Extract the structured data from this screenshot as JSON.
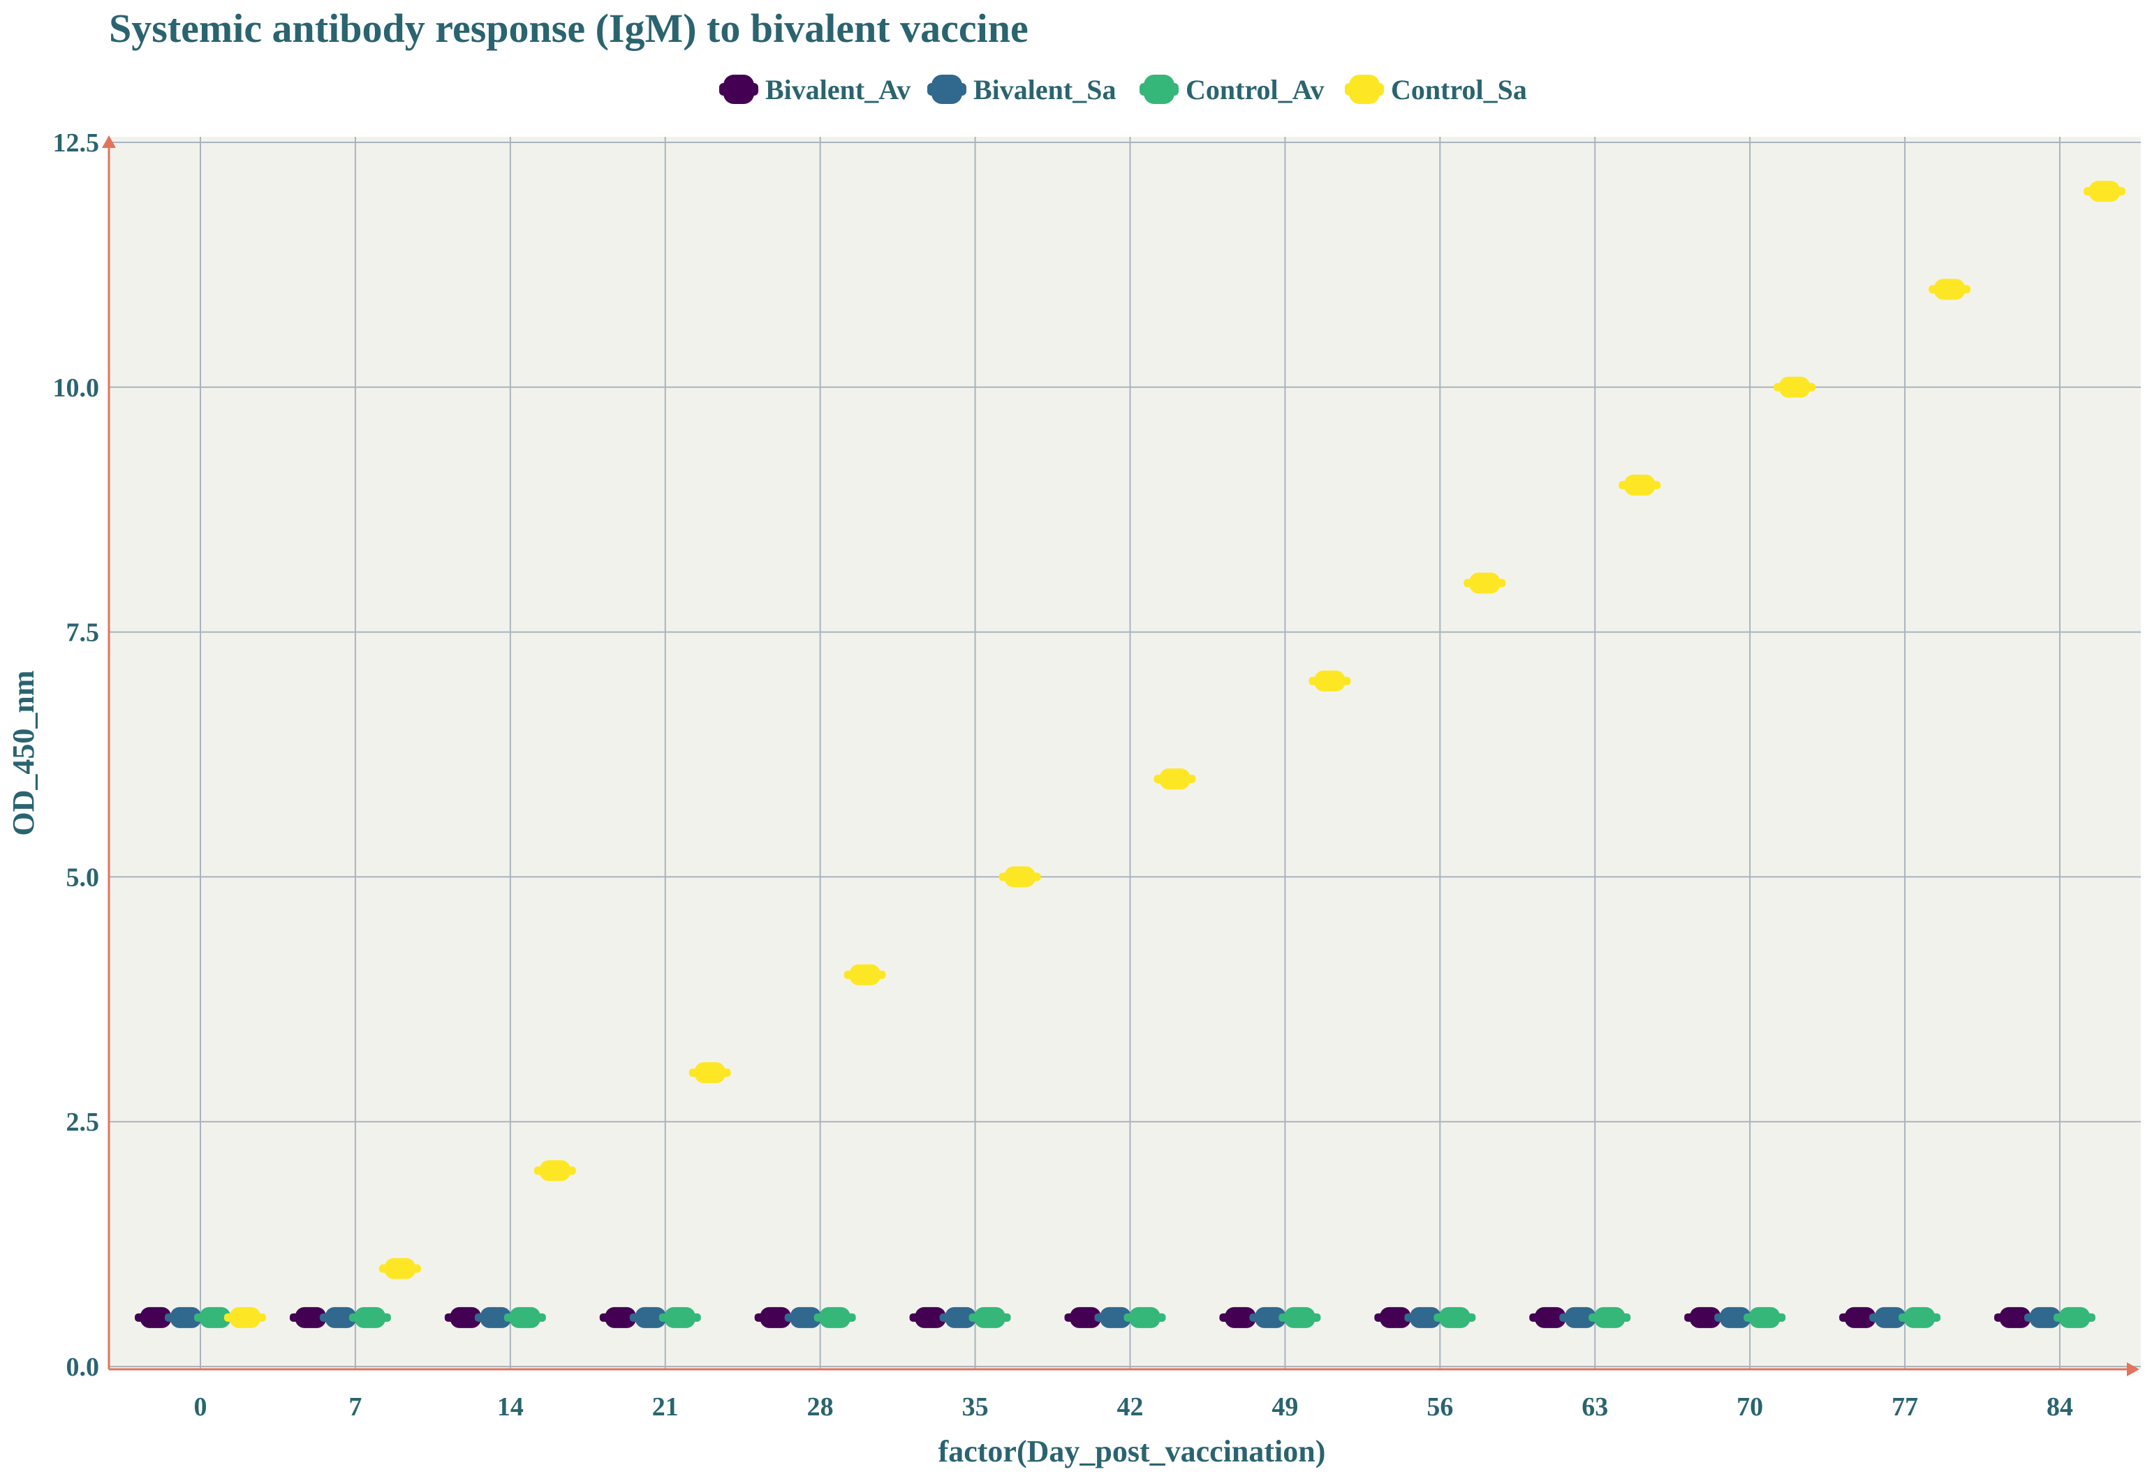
{
  "colors": {
    "text": "#2a6470",
    "panel": "#f2f2ed",
    "grid": "#a8b4be",
    "axis": "#e3735a",
    "Bivalent_Av": "#440154",
    "Bivalent_Sa": "#31688e",
    "Control_Av": "#35b779",
    "Control_Sa": "#fde725"
  },
  "chart_data": {
    "type": "scatter",
    "title": "Systemic antibody response (IgM) to bivalent vaccine",
    "xlabel": "factor(Day_post_vaccination)",
    "ylabel": "OD_450_nm",
    "categories": [
      "0",
      "7",
      "14",
      "21",
      "28",
      "35",
      "42",
      "49",
      "56",
      "63",
      "70",
      "77",
      "84"
    ],
    "yticks": [
      "0.0",
      "2.5",
      "5.0",
      "7.5",
      "10.0",
      "12.5"
    ],
    "ylim": [
      0,
      12.5
    ],
    "grid": true,
    "legend_position": "top",
    "series": [
      {
        "name": "Bivalent_Av",
        "values": [
          0.5,
          0.5,
          0.5,
          0.5,
          0.5,
          0.5,
          0.5,
          0.5,
          0.5,
          0.5,
          0.5,
          0.5,
          0.5
        ]
      },
      {
        "name": "Bivalent_Sa",
        "values": [
          0.5,
          0.5,
          0.5,
          0.5,
          0.5,
          0.5,
          0.5,
          0.5,
          0.5,
          0.5,
          0.5,
          0.5,
          0.5
        ]
      },
      {
        "name": "Control_Av",
        "values": [
          0.5,
          0.5,
          0.5,
          0.5,
          0.5,
          0.5,
          0.5,
          0.5,
          0.5,
          0.5,
          0.5,
          0.5,
          0.5
        ]
      },
      {
        "name": "Control_Sa",
        "values": [
          0.5,
          1.0,
          2.0,
          3.0,
          4.0,
          5.0,
          6.0,
          7.0,
          8.0,
          9.0,
          10.0,
          11.0,
          12.0
        ]
      }
    ]
  }
}
